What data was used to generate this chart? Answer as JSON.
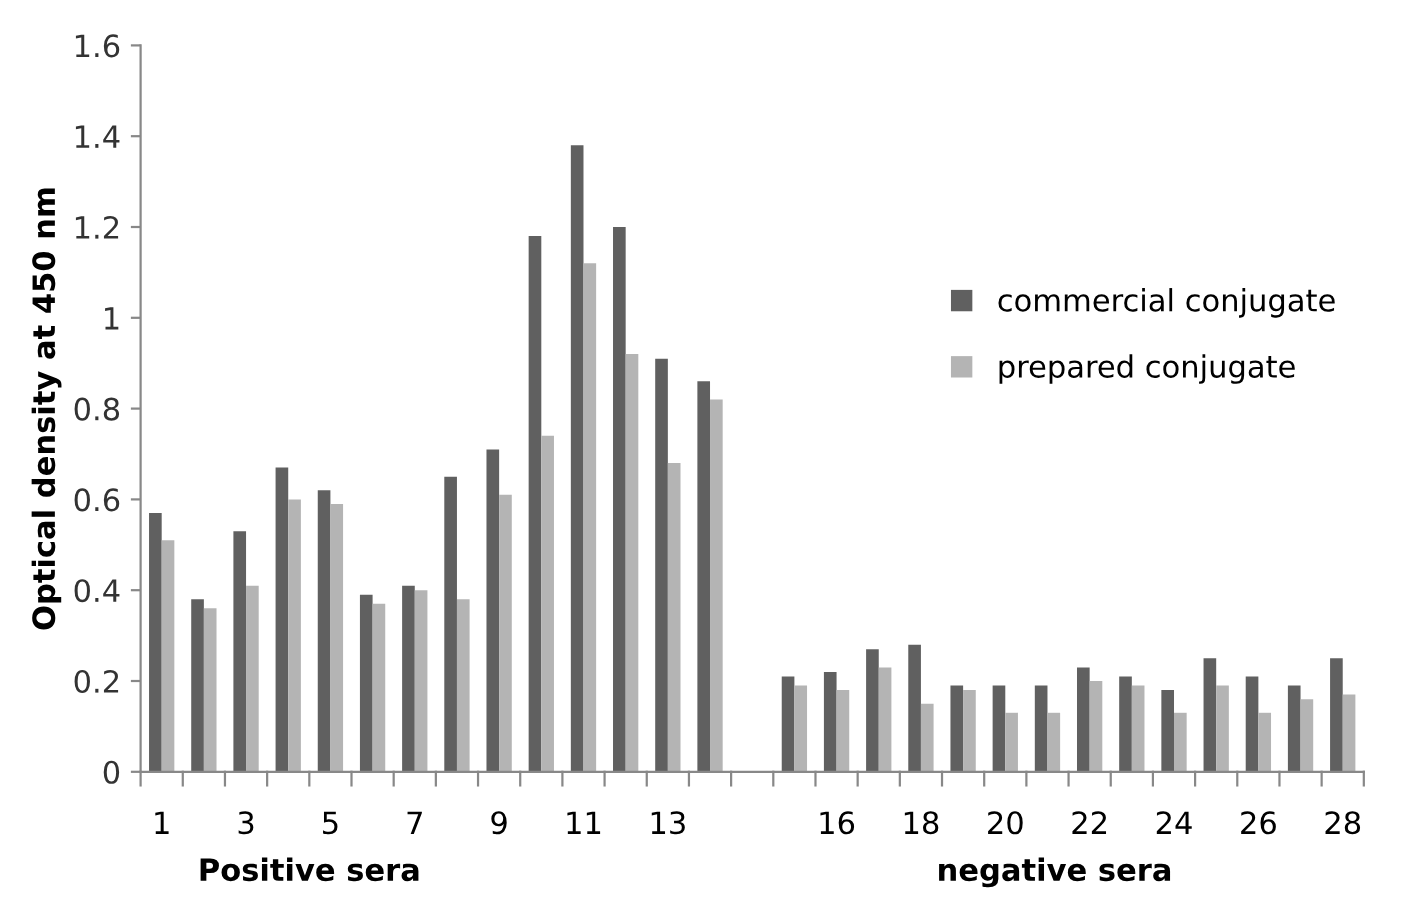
{
  "chart_data": {
    "type": "bar",
    "categories": [
      "1",
      null,
      "3",
      null,
      "5",
      null,
      "7",
      null,
      "9",
      null,
      "11",
      null,
      "13",
      null,
      null,
      null,
      "16",
      null,
      "18",
      null,
      "20",
      null,
      "22",
      null,
      "24",
      null,
      "26",
      null,
      "28"
    ],
    "series": [
      {
        "name": "commercial conjugate",
        "color": "#606060",
        "values": [
          0.57,
          0.38,
          0.53,
          0.67,
          0.62,
          0.39,
          0.41,
          0.65,
          0.71,
          1.18,
          1.38,
          1.2,
          0.91,
          0.86,
          null,
          0.21,
          0.22,
          0.27,
          0.28,
          0.19,
          0.19,
          0.19,
          0.23,
          0.21,
          0.18,
          0.25,
          0.21,
          0.19,
          0.25
        ]
      },
      {
        "name": "prepared conjugate",
        "color": "#b4b4b4",
        "values": [
          0.51,
          0.36,
          0.41,
          0.6,
          0.59,
          0.37,
          0.4,
          0.38,
          0.61,
          0.74,
          1.12,
          0.92,
          0.68,
          0.82,
          null,
          0.19,
          0.18,
          0.23,
          0.15,
          0.18,
          0.13,
          0.13,
          0.2,
          0.19,
          0.13,
          0.19,
          0.13,
          0.16,
          0.17
        ]
      }
    ],
    "ylabel": "Optical density at 450 nm",
    "annotations": [
      "Positive sera",
      "negative sera"
    ],
    "ylim": [
      0,
      1.6
    ],
    "yticks": [
      0,
      0.2,
      0.4,
      0.6,
      0.8,
      1,
      1.2,
      1.4,
      1.6
    ],
    "grid": false,
    "legend": "right"
  }
}
